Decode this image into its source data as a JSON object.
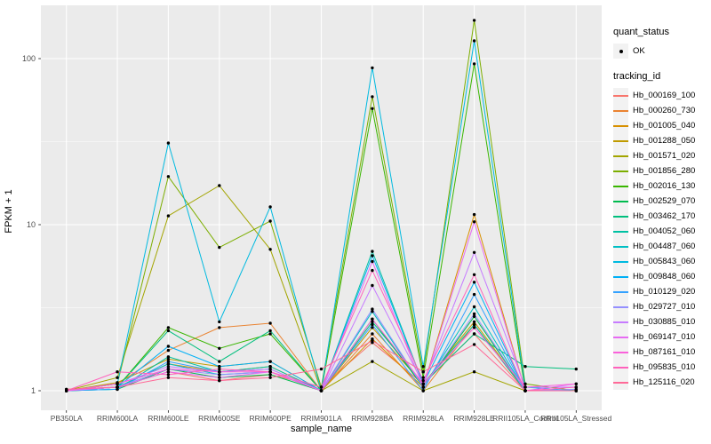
{
  "chart_data": {
    "type": "line",
    "title": "",
    "xlabel": "sample_name",
    "ylabel": "FPKM + 1",
    "y_scale": "log10",
    "y_ticks": [
      "1",
      "10",
      "100"
    ],
    "y_minor_values": [
      3.1623,
      31.623
    ],
    "ylim": [
      0.76,
      209
    ],
    "grid": "on",
    "legend_position": "right",
    "colors": {
      "panel": "#EBEBEB",
      "grid": "#FFFFFF",
      "points": "#000000",
      "tick_text": "#4D4D4D",
      "tick_mark": "#333333",
      "legend_key": "#F2F2F2"
    },
    "categories": [
      "PB350LA",
      "RRIM600LA",
      "RRIM600LE",
      "RRIM600SE",
      "RRIM600PE",
      "RRIM901LA",
      "RRIM928BA",
      "RRIM928LA",
      "RRIM928LE",
      "RRII105LA_Control",
      "RRII105LA_Stressed"
    ],
    "legend": {
      "quant_status": {
        "title": "quant_status",
        "items": [
          {
            "label": "OK",
            "marker": "point",
            "color": "#000000"
          }
        ]
      },
      "tracking_id": {
        "title": "tracking_id"
      }
    },
    "series": [
      {
        "name": "Hb_000169_100",
        "color": "#F8766D",
        "values": [
          1.02,
          1.05,
          1.3,
          1.15,
          1.25,
          1.05,
          1.95,
          1.1,
          2.2,
          1.0,
          1.02
        ]
      },
      {
        "name": "Hb_000260_730",
        "color": "#EA8331",
        "values": [
          1.0,
          1.1,
          1.75,
          2.4,
          2.55,
          1.0,
          2.2,
          1.0,
          2.5,
          1.0,
          1.0
        ]
      },
      {
        "name": "Hb_001005_040",
        "color": "#D89000",
        "values": [
          1.0,
          1.05,
          1.45,
          1.3,
          1.4,
          1.0,
          2.05,
          1.05,
          11.5,
          1.0,
          1.0
        ]
      },
      {
        "name": "Hb_001288_050",
        "color": "#C09B00",
        "values": [
          1.0,
          1.12,
          1.55,
          1.4,
          1.5,
          1.0,
          2.4,
          1.1,
          2.6,
          1.0,
          1.0
        ]
      },
      {
        "name": "Hb_001571_020",
        "color": "#A3A500",
        "values": [
          1.0,
          1.2,
          11.3,
          17.2,
          7.1,
          1.0,
          1.5,
          1.0,
          1.3,
          1.0,
          1.0
        ]
      },
      {
        "name": "Hb_001856_280",
        "color": "#7CAE00",
        "values": [
          1.0,
          1.1,
          19.5,
          7.3,
          10.5,
          1.05,
          59.0,
          1.3,
          170.0,
          1.1,
          1.0
        ]
      },
      {
        "name": "Hb_002016_130",
        "color": "#39B600",
        "values": [
          1.0,
          1.05,
          2.4,
          1.8,
          2.2,
          1.0,
          50.0,
          1.2,
          93.0,
          1.0,
          1.0
        ]
      },
      {
        "name": "Hb_002529_070",
        "color": "#00BB4E",
        "values": [
          1.0,
          1.02,
          1.35,
          1.2,
          1.25,
          1.0,
          2.7,
          1.05,
          2.8,
          1.0,
          1.0
        ]
      },
      {
        "name": "Hb_003462_170",
        "color": "#00BF7D",
        "values": [
          1.0,
          1.05,
          2.3,
          1.5,
          2.3,
          1.0,
          2.6,
          1.1,
          2.2,
          1.4,
          1.35
        ]
      },
      {
        "name": "Hb_004052_060",
        "color": "#00C1A3",
        "values": [
          1.0,
          1.02,
          1.6,
          1.3,
          1.4,
          1.0,
          6.9,
          1.1,
          2.5,
          1.0,
          1.0
        ]
      },
      {
        "name": "Hb_004487_060",
        "color": "#00BFC4",
        "values": [
          1.0,
          1.05,
          1.45,
          1.25,
          1.3,
          1.0,
          3.0,
          1.05,
          3.2,
          1.0,
          1.0
        ]
      },
      {
        "name": "Hb_005843_060",
        "color": "#00BAE0",
        "values": [
          1.0,
          1.1,
          31.0,
          2.6,
          12.8,
          1.0,
          88.0,
          1.4,
          128.0,
          1.05,
          1.0
        ]
      },
      {
        "name": "Hb_009848_060",
        "color": "#00B0F6",
        "values": [
          1.0,
          1.05,
          1.85,
          1.4,
          1.5,
          1.0,
          6.5,
          1.1,
          4.5,
          1.0,
          1.0
        ]
      },
      {
        "name": "Hb_010129_020",
        "color": "#35A2FF",
        "values": [
          1.0,
          1.02,
          1.5,
          1.3,
          1.35,
          1.0,
          2.5,
          1.0,
          3.8,
          1.0,
          1.0
        ]
      },
      {
        "name": "Hb_029727_010",
        "color": "#9590FF",
        "values": [
          1.0,
          1.05,
          1.35,
          1.25,
          1.3,
          1.0,
          3.1,
          1.05,
          2.9,
          1.0,
          1.02
        ]
      },
      {
        "name": "Hb_030885_010",
        "color": "#C77CFF",
        "values": [
          1.0,
          1.1,
          1.4,
          1.3,
          1.35,
          1.0,
          4.3,
          1.1,
          6.8,
          1.05,
          1.05
        ]
      },
      {
        "name": "Hb_069147_010",
        "color": "#E76BF3",
        "values": [
          1.0,
          1.05,
          1.3,
          1.2,
          1.3,
          1.0,
          6.0,
          1.05,
          10.4,
          1.0,
          1.1
        ]
      },
      {
        "name": "Hb_087161_010",
        "color": "#FA62DB",
        "values": [
          1.0,
          1.1,
          1.35,
          1.3,
          1.3,
          1.0,
          2.7,
          1.1,
          2.4,
          1.05,
          1.1
        ]
      },
      {
        "name": "Hb_095835_010",
        "color": "#FF62BC",
        "values": [
          1.0,
          1.3,
          1.25,
          1.35,
          1.3,
          1.05,
          5.3,
          1.15,
          5.0,
          1.0,
          1.05
        ]
      },
      {
        "name": "Hb_125116_020",
        "color": "#FF6A98",
        "values": [
          1.02,
          1.05,
          1.2,
          1.15,
          1.2,
          1.35,
          2.0,
          1.3,
          1.9,
          1.0,
          1.0
        ]
      }
    ]
  }
}
